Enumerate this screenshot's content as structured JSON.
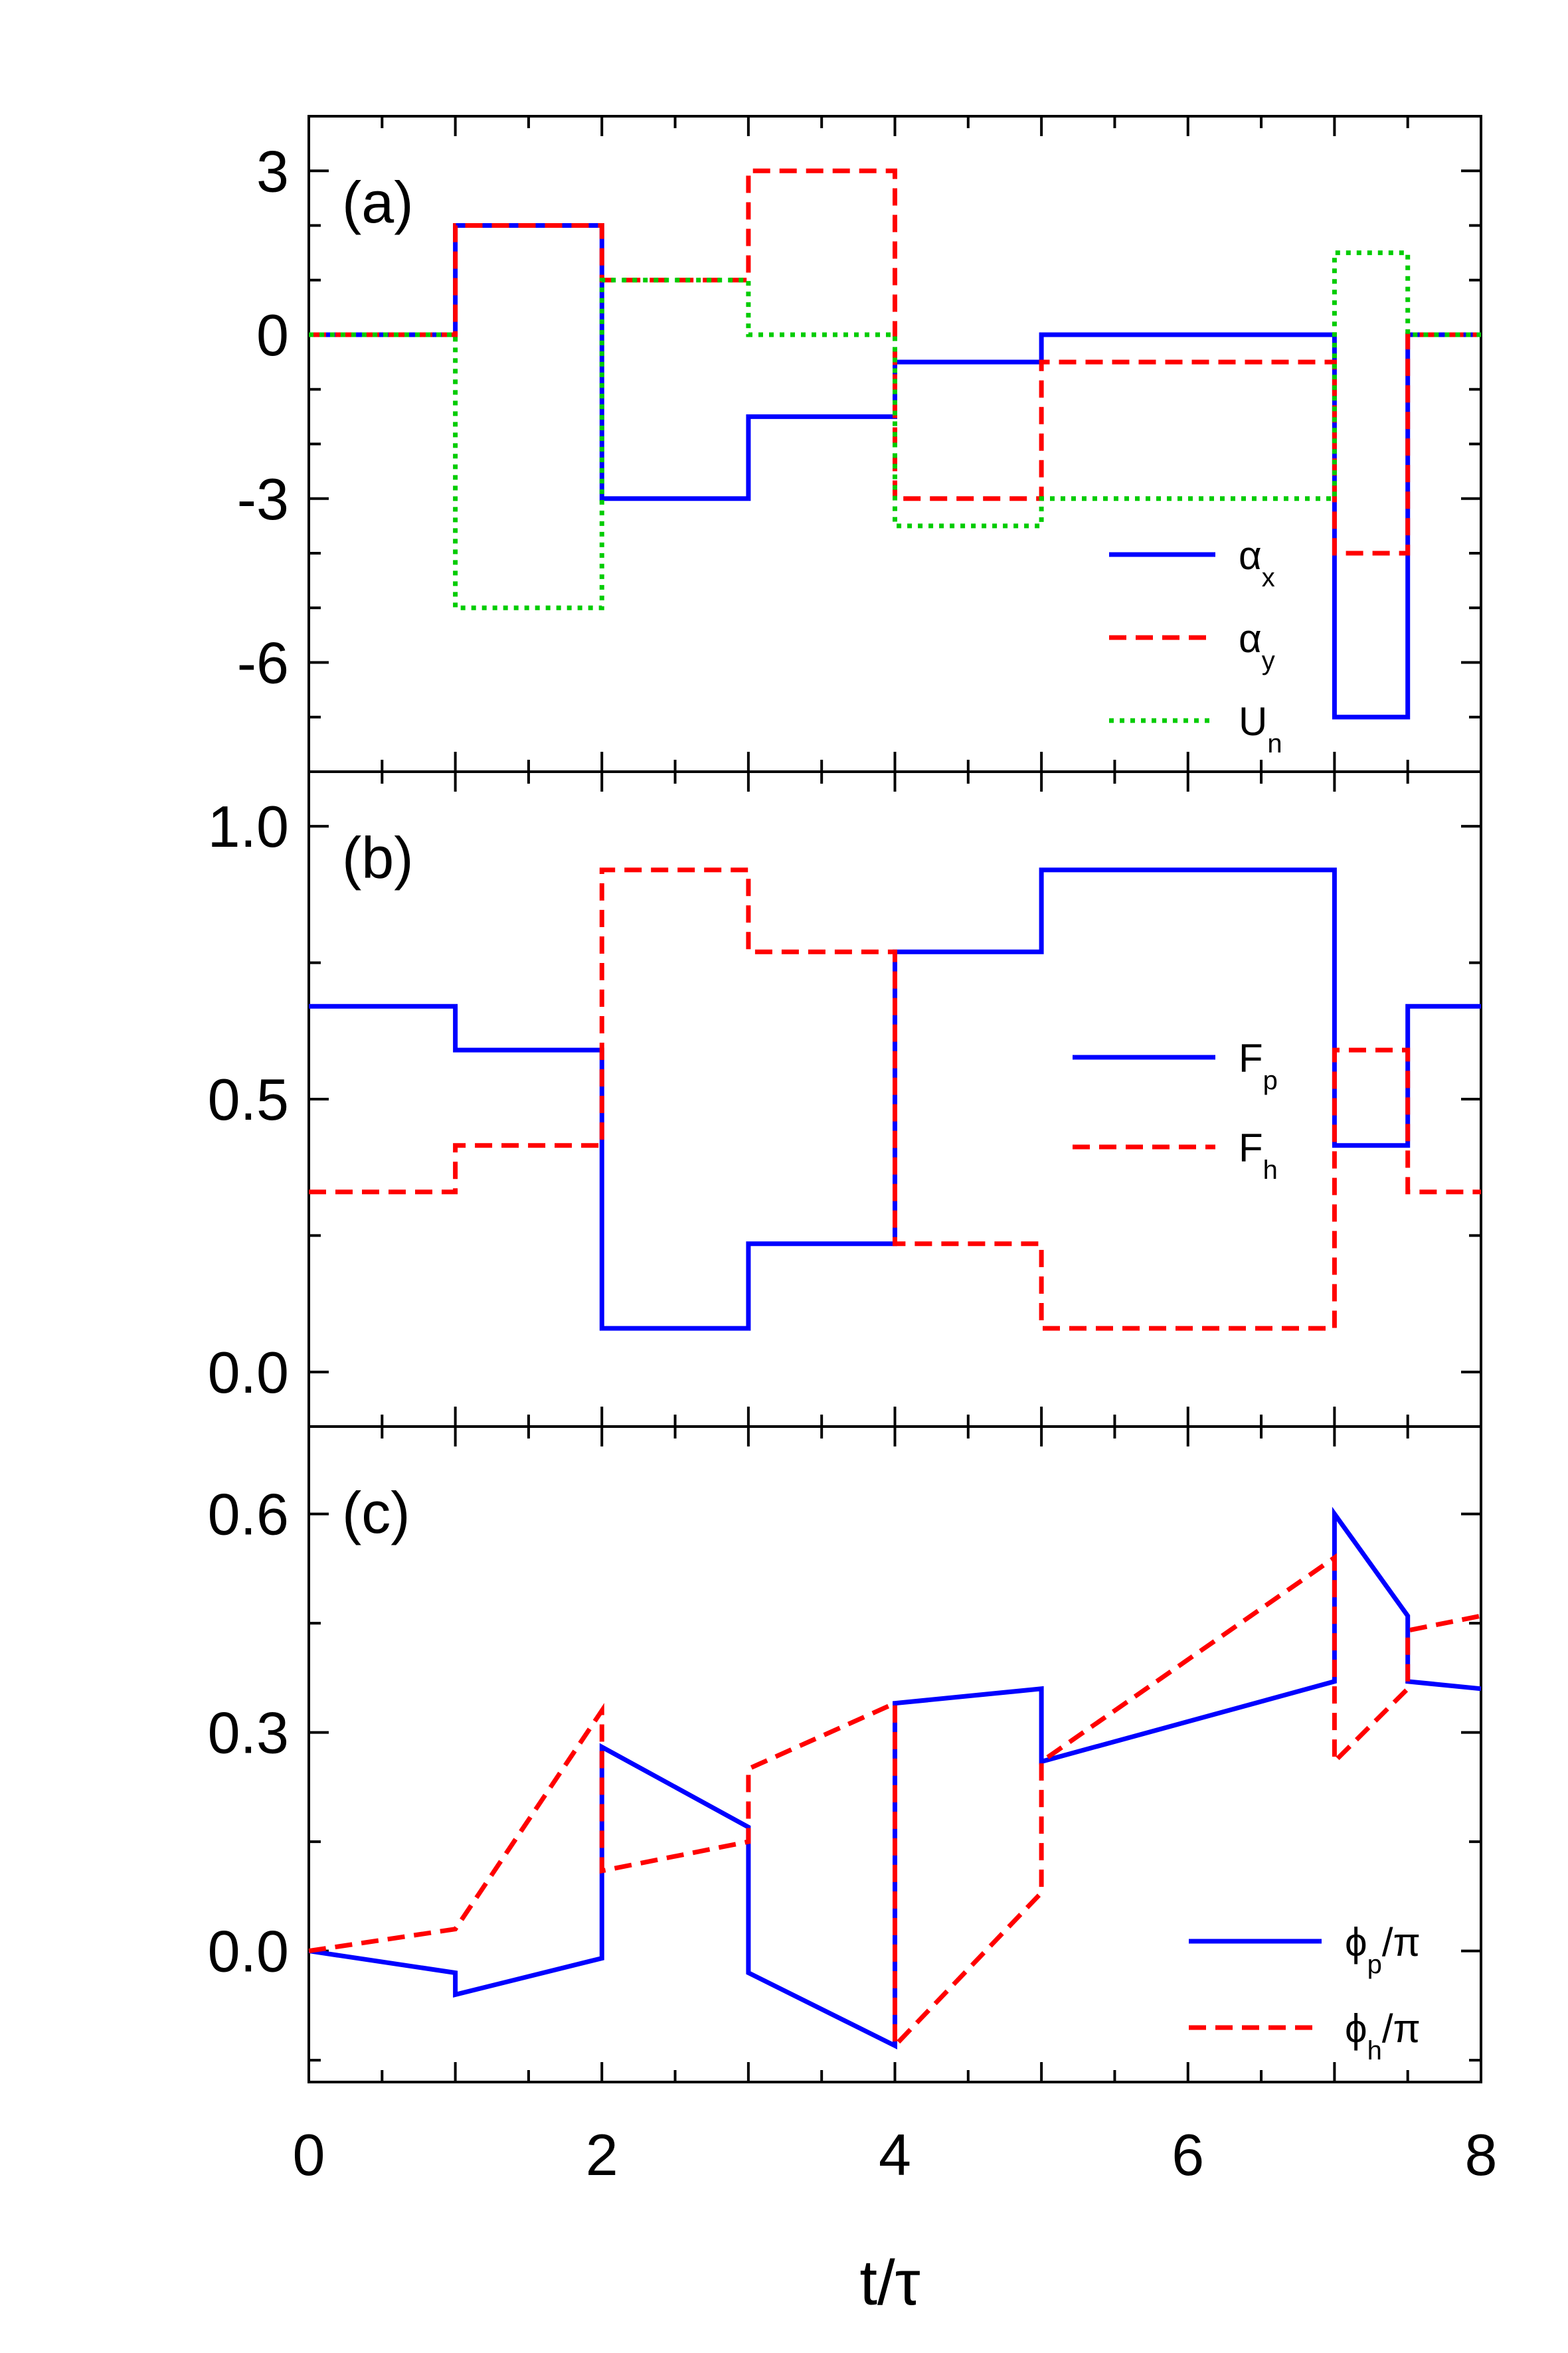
{
  "x_axis": {
    "label": "t/τ",
    "range": [
      0,
      8
    ],
    "ticks": [
      0,
      2,
      4,
      6,
      8
    ],
    "tick_labels": [
      "0",
      "2",
      "4",
      "6",
      "8"
    ]
  },
  "chart_data": [
    {
      "type": "line",
      "panel_label": "(a)",
      "title": "",
      "xlabel": "",
      "ylabel": "",
      "ylim": [
        -8,
        4
      ],
      "yticks": [
        3,
        0,
        -3,
        -6
      ],
      "ytick_labels": [
        "3",
        "0",
        "-3",
        "-6"
      ],
      "legend_placement": "bottom-right",
      "series": [
        {
          "name": "α",
          "subscript": "x",
          "color": "#0000ff",
          "style": "solid",
          "x": [
            0,
            1,
            1,
            2,
            2,
            3,
            3,
            4,
            4,
            5,
            5,
            7,
            7,
            7.5,
            7.5,
            8
          ],
          "y": [
            0,
            0,
            2,
            2,
            -3,
            -3,
            -1.5,
            -1.5,
            -0.5,
            -0.5,
            0,
            0,
            -7,
            -7,
            0,
            0
          ]
        },
        {
          "name": "α",
          "subscript": "y",
          "color": "#ff0000",
          "style": "dashed",
          "x": [
            0,
            1,
            1,
            2,
            2,
            3,
            3,
            4,
            4,
            5,
            5,
            7,
            7,
            7.5,
            7.5,
            8
          ],
          "y": [
            0,
            0,
            2,
            2,
            1,
            1,
            3,
            3,
            -3,
            -3,
            -0.5,
            -0.5,
            -4,
            -4,
            0,
            0
          ]
        },
        {
          "name": "U",
          "subscript": "n",
          "color": "#00cc00",
          "style": "dotted",
          "x": [
            0,
            1,
            1,
            2,
            2,
            3,
            3,
            4,
            4,
            5,
            5,
            7,
            7,
            7.5,
            7.5,
            8
          ],
          "y": [
            0,
            0,
            -5,
            -5,
            1,
            1,
            0,
            0,
            -3.5,
            -3.5,
            -3,
            -3,
            1.5,
            1.5,
            0,
            0
          ]
        }
      ]
    },
    {
      "type": "line",
      "panel_label": "(b)",
      "title": "",
      "xlabel": "",
      "ylabel": "",
      "ylim": [
        -0.1,
        1.1
      ],
      "yticks": [
        1.0,
        0.5,
        0.0
      ],
      "ytick_labels": [
        "1.0",
        "0.5",
        "0.0"
      ],
      "legend_placement": "right",
      "series": [
        {
          "name": "F",
          "subscript": "p",
          "color": "#0000ff",
          "style": "solid",
          "x": [
            0,
            1,
            1,
            2,
            2,
            3,
            3,
            4,
            4,
            5,
            5,
            7,
            7,
            7.5,
            7.5,
            8
          ],
          "y": [
            0.67,
            0.67,
            0.59,
            0.59,
            0.08,
            0.08,
            0.235,
            0.235,
            0.77,
            0.77,
            0.92,
            0.92,
            0.415,
            0.415,
            0.67,
            0.67
          ]
        },
        {
          "name": "F",
          "subscript": "h",
          "color": "#ff0000",
          "style": "dashed",
          "x": [
            0,
            1,
            1,
            2,
            2,
            3,
            3,
            4,
            4,
            5,
            5,
            7,
            7,
            7.5,
            7.5,
            8
          ],
          "y": [
            0.33,
            0.33,
            0.415,
            0.415,
            0.92,
            0.92,
            0.77,
            0.77,
            0.235,
            0.235,
            0.08,
            0.08,
            0.59,
            0.59,
            0.33,
            0.33
          ]
        }
      ]
    },
    {
      "type": "line",
      "panel_label": "(c)",
      "title": "",
      "xlabel": "",
      "ylabel": "",
      "ylim": [
        -0.18,
        0.72
      ],
      "yticks": [
        0.6,
        0.3,
        0.0
      ],
      "ytick_labels": [
        "0.6",
        "0.3",
        "0.0"
      ],
      "legend_placement": "bottom-right",
      "series": [
        {
          "name": "ϕ",
          "subscript": "p",
          "suffix": "/π",
          "color": "#0000ff",
          "style": "solid",
          "x": [
            0,
            1,
            1,
            2,
            2,
            3,
            3,
            4,
            4,
            5,
            5,
            7,
            7,
            7.5,
            7.5,
            8
          ],
          "y": [
            0,
            -0.03,
            -0.06,
            -0.01,
            0.28,
            0.17,
            -0.03,
            -0.13,
            0.34,
            0.36,
            0.26,
            0.37,
            0.6,
            0.46,
            0.37,
            0.36
          ]
        },
        {
          "name": "ϕ",
          "subscript": "h",
          "suffix": "/π",
          "color": "#ff0000",
          "style": "dashed",
          "x": [
            0,
            1,
            2,
            2,
            3,
            3,
            4,
            4,
            5,
            5,
            7,
            7,
            7.5,
            7.5,
            8
          ],
          "y": [
            0,
            0.03,
            0.33,
            0.11,
            0.15,
            0.25,
            0.34,
            -0.13,
            0.08,
            0.26,
            0.54,
            0.26,
            0.36,
            0.44,
            0.46
          ]
        }
      ]
    }
  ]
}
